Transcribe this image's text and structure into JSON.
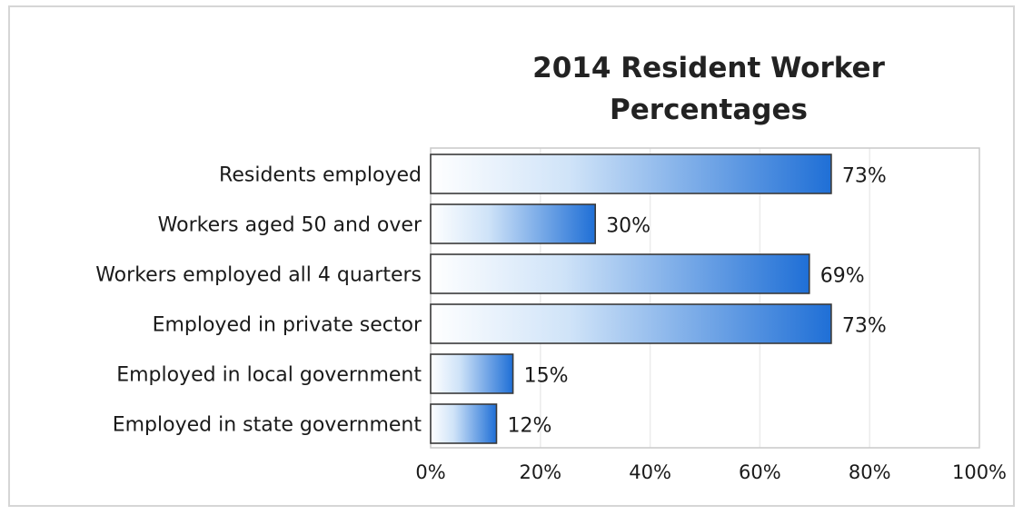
{
  "chart_data": {
    "type": "bar",
    "orientation": "horizontal",
    "title": "2014 Resident Worker Percentages",
    "categories": [
      "Residents employed",
      "Workers aged 50 and over",
      "Workers employed all 4 quarters",
      "Employed in private sector",
      "Employed in local government",
      "Employed in state government"
    ],
    "values": [
      73,
      30,
      69,
      73,
      15,
      12
    ],
    "value_labels": [
      "73%",
      "30%",
      "69%",
      "73%",
      "15%",
      "12%"
    ],
    "xlim": [
      0,
      100
    ],
    "xticks": [
      0,
      20,
      40,
      60,
      80,
      100
    ],
    "xtick_labels": [
      "0%",
      "20%",
      "40%",
      "60%",
      "80%",
      "100%"
    ],
    "xlabel": "",
    "ylabel": "",
    "grid": true,
    "legend": "none",
    "bar_color": "#2a7fdb",
    "bar_color_light": "#ffffff"
  }
}
